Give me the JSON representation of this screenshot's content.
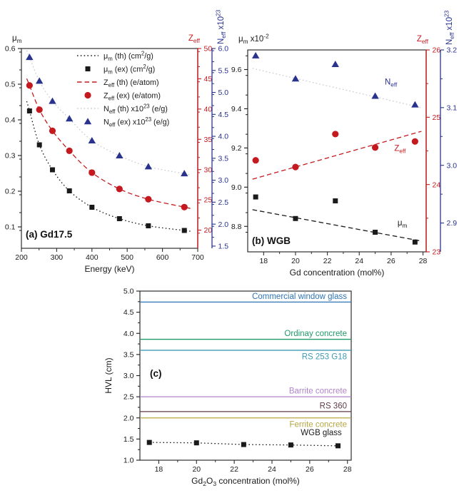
{
  "colors": {
    "black": "#1a1a1a",
    "red": "#c41a1f",
    "blue": "#29338e",
    "theory_gray": "#c9c9d6",
    "frame": "#2e2e2e"
  },
  "chart_data": [
    {
      "id": "a",
      "type": "scatter",
      "panel_label": "(a) Gd17.5",
      "xlabel": "Energy (keV)",
      "xlim": [
        200,
        700
      ],
      "xticks": [
        200,
        300,
        400,
        500,
        600,
        700
      ],
      "x_minor_step": 50,
      "x": [
        223,
        251,
        288,
        336,
        400,
        478,
        560,
        662
      ],
      "axes": {
        "left": {
          "title": "μ_{m}",
          "lim": [
            0.04,
            0.6
          ],
          "ticks": [
            0.1,
            0.2,
            0.3,
            0.4,
            0.5,
            0.6
          ],
          "minor_step": 0.05,
          "decimals": 1,
          "color": "black"
        },
        "right1": {
          "title": "Z_{eff}",
          "lim": [
            17,
            50
          ],
          "ticks": [
            20,
            25,
            30,
            35,
            40,
            45,
            50
          ],
          "minor_step": 2.5,
          "decimals": 0,
          "color": "red"
        },
        "right2": {
          "title": "N_{eff} x10^{23}",
          "lim": [
            1.45,
            6.0
          ],
          "ticks": [
            1.5,
            2.0,
            2.5,
            3.0,
            3.5,
            4.0,
            4.5,
            5.0,
            5.5,
            6.0
          ],
          "minor_step": 0.25,
          "decimals": 1,
          "color": "blue"
        }
      },
      "legend": [
        {
          "label": "μ_{m} (th) (cm^{2}/g)",
          "glyph": "dotted-line",
          "color": "black"
        },
        {
          "label": "μ_{m} (ex) (cm^{2}/g)",
          "glyph": "square",
          "color": "black"
        },
        {
          "label": "Z_{eff} (th) (e/atom)",
          "glyph": "dashed-line",
          "color": "red"
        },
        {
          "label": "Z_{eff} (ex) (e/atom)",
          "glyph": "circle",
          "color": "red"
        },
        {
          "label": "N_{eff} (th) x10^{23} (e/g)",
          "glyph": "dotted-line",
          "color": "theory_gray"
        },
        {
          "label": "N_{eff} (ex) x10^{23} (e/g)",
          "glyph": "triangle",
          "color": "blue"
        }
      ],
      "series": [
        {
          "name": "mu-m-theory",
          "axis": "left",
          "line": "dotted",
          "extend": true,
          "color": "black",
          "values": [
            0.425,
            0.33,
            0.26,
            0.201,
            0.155,
            0.123,
            0.103,
            0.09
          ]
        },
        {
          "name": "z-eff-theory",
          "axis": "right1",
          "line": "dashed",
          "extend": true,
          "color": "red",
          "values": [
            43.9,
            39.9,
            36.4,
            33.1,
            29.5,
            26.8,
            25.1,
            23.8
          ]
        },
        {
          "name": "n-eff-theory",
          "axis": "right2",
          "line": "dotted",
          "extend": true,
          "color": "theory_gray",
          "values": [
            5.8,
            5.26,
            4.8,
            4.4,
            3.9,
            3.56,
            3.31,
            3.15
          ]
        },
        {
          "name": "mu-m-exp",
          "axis": "left",
          "marker": "square",
          "color": "black",
          "values": [
            0.425,
            0.33,
            0.26,
            0.201,
            0.155,
            0.123,
            0.103,
            0.09
          ]
        },
        {
          "name": "z-eff-exp",
          "axis": "right1",
          "marker": "circle",
          "color": "red",
          "values": [
            43.9,
            39.9,
            36.4,
            33.1,
            29.5,
            26.8,
            25.1,
            23.8
          ]
        },
        {
          "name": "n-eff-exp",
          "axis": "right2",
          "marker": "triangle",
          "color": "blue",
          "values": [
            5.8,
            5.26,
            4.8,
            4.4,
            3.9,
            3.56,
            3.31,
            3.15
          ]
        }
      ]
    },
    {
      "id": "b",
      "type": "scatter",
      "panel_label": "(b) WGB",
      "xlabel": "Gd concentration (mol%)",
      "xlim": [
        17,
        28.2
      ],
      "xticks": [
        18,
        20,
        22,
        24,
        26,
        28
      ],
      "x_minor_step": 1,
      "x": [
        17.5,
        20,
        22.5,
        25,
        27.5
      ],
      "axes": {
        "left": {
          "title": "μ_{m} x10^{-2}",
          "lim": [
            8.67,
            9.7
          ],
          "ticks": [
            8.8,
            9.0,
            9.2,
            9.4,
            9.6
          ],
          "minor_step": 0.1,
          "decimals": 1,
          "color": "black"
        },
        "right1": {
          "title": "Z_{eff}",
          "lim": [
            23,
            26
          ],
          "ticks": [
            23,
            24,
            25,
            26
          ],
          "minor_step": 0.5,
          "decimals": 0,
          "color": "red"
        },
        "right2": {
          "title": "N_{eff} x10^{23}",
          "lim": [
            2.85,
            3.2
          ],
          "ticks": [
            2.9,
            3.0,
            3.1,
            3.2
          ],
          "minor_step": 0.05,
          "decimals": 1,
          "color": "blue"
        }
      },
      "series": [
        {
          "name": "mu-m-trend",
          "axis": "left",
          "line": "dashed",
          "color": "black",
          "x": [
            17.3,
            27.9
          ],
          "values": [
            8.885,
            8.725
          ]
        },
        {
          "name": "z-eff-trend",
          "axis": "right1",
          "line": "dashed",
          "color": "red",
          "x": [
            17.3,
            27.9
          ],
          "values": [
            24.08,
            24.79
          ]
        },
        {
          "name": "n-eff-trend",
          "axis": "right2",
          "line": "dotted",
          "color": "theory_gray",
          "x": [
            17.3,
            27.9
          ],
          "values": [
            3.168,
            3.1
          ]
        },
        {
          "name": "mu-m-exp",
          "axis": "left",
          "marker": "square",
          "color": "black",
          "values": [
            8.95,
            8.84,
            8.93,
            8.77,
            8.72
          ]
        },
        {
          "name": "z-eff-exp",
          "axis": "right1",
          "marker": "circle",
          "color": "red",
          "values": [
            24.36,
            24.26,
            24.75,
            24.55,
            24.64
          ]
        },
        {
          "name": "n-eff-exp",
          "axis": "right2",
          "marker": "triangle",
          "color": "blue",
          "values": [
            3.19,
            3.15,
            3.175,
            3.12,
            3.105
          ]
        }
      ],
      "annotations": [
        {
          "text": "N_{eff}",
          "axis": "right2",
          "x": 25.6,
          "y": 3.14,
          "color": "blue"
        },
        {
          "text": "Z_{eff}",
          "axis": "right1",
          "x": 26.2,
          "y": 24.5,
          "color": "red"
        },
        {
          "text": "μ_{m}",
          "axis": "left",
          "x": 26.4,
          "y": 8.805,
          "color": "black"
        }
      ]
    },
    {
      "id": "c",
      "type": "line",
      "panel_label": "(c)",
      "xlabel": "Gd_{2}O_{3} concentration (mol%)",
      "ylabel": "HVL (cm)",
      "xlim": [
        17,
        28.2
      ],
      "xticks": [
        18,
        20,
        22,
        24,
        26,
        28
      ],
      "x_minor_step": 1,
      "ylim": [
        1.0,
        5.0
      ],
      "yticks": [
        1.0,
        1.5,
        2.0,
        2.5,
        3.0,
        3.5,
        4.0,
        4.5,
        5.0
      ],
      "y_minor_step": 0.25,
      "y_decimals": 1,
      "ref_lines": [
        {
          "label": "Commercial window glass",
          "value": 4.74,
          "color": "#2e74b5",
          "label_side": "above"
        },
        {
          "label": "Ordinay concrete",
          "value": 3.86,
          "color": "#21996b",
          "label_side": "above"
        },
        {
          "label": "RS 253 G18",
          "value": 3.6,
          "color": "#3f9ab5",
          "label_side": "below"
        },
        {
          "label": "Barrite concrete",
          "value": 2.5,
          "color": "#b083c9",
          "label_side": "above"
        },
        {
          "label": "RS 360",
          "value": 2.15,
          "color": "#5e3c45",
          "label_side": "above"
        },
        {
          "label": "Ferrite concrete",
          "value": 2.0,
          "color": "#b5a642",
          "label_side": "below"
        }
      ],
      "series": [
        {
          "name": "wgb-glass",
          "axis": "left",
          "marker": "square",
          "line": "dotted",
          "color": "black",
          "x": [
            17.5,
            20,
            22.5,
            25,
            27.5
          ],
          "values": [
            1.42,
            1.41,
            1.37,
            1.36,
            1.34
          ]
        }
      ],
      "annotations": [
        {
          "text": "WGB glass",
          "x": 27.7,
          "y": 1.59,
          "color": "black",
          "anchor": "end"
        }
      ]
    }
  ]
}
